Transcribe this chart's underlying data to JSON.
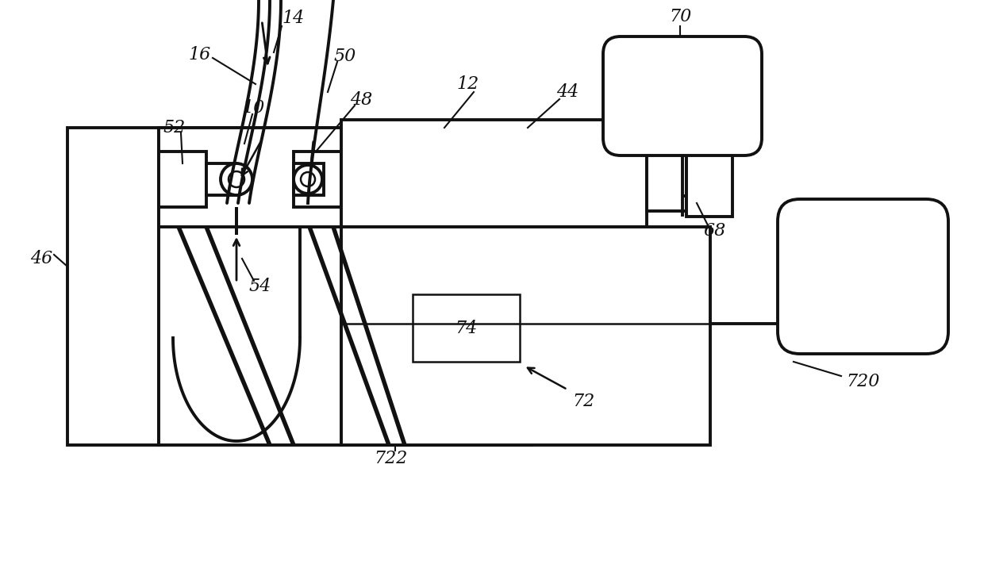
{
  "bg": "#ffffff",
  "lc": "#111111",
  "lw": 2.8,
  "tlw": 1.8,
  "fs": 16,
  "fig_w": 12.4,
  "fig_h": 7.16,
  "xmax": 1240,
  "ymax": 716
}
